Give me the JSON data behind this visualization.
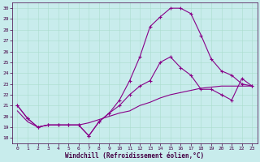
{
  "xlabel": "Windchill (Refroidissement éolien,°C)",
  "background_color": "#c8ecec",
  "line_color": "#880088",
  "xmin": -0.5,
  "xmax": 23.5,
  "ymin": 17.5,
  "ymax": 30.5,
  "yticks": [
    18,
    19,
    20,
    21,
    22,
    23,
    24,
    25,
    26,
    27,
    28,
    29,
    30
  ],
  "xticks": [
    0,
    1,
    2,
    3,
    4,
    5,
    6,
    7,
    8,
    9,
    10,
    11,
    12,
    13,
    14,
    15,
    16,
    17,
    18,
    19,
    20,
    21,
    22,
    23
  ],
  "series1_x": [
    0,
    1,
    2,
    3,
    4,
    5,
    6,
    7,
    8,
    9,
    10,
    11,
    12,
    13,
    14,
    15,
    16,
    17,
    18,
    19,
    20,
    21,
    22,
    23
  ],
  "series1_y": [
    21.0,
    19.8,
    19.0,
    19.2,
    19.2,
    19.2,
    19.2,
    18.2,
    19.5,
    20.3,
    21.5,
    23.3,
    25.5,
    28.3,
    29.2,
    30.0,
    30.0,
    29.5,
    27.5,
    25.3,
    24.2,
    23.8,
    23.0,
    22.8
  ],
  "series2_x": [
    0,
    1,
    2,
    3,
    4,
    5,
    6,
    7,
    8,
    9,
    10,
    11,
    12,
    13,
    14,
    15,
    16,
    17,
    18,
    19,
    20,
    21,
    22,
    23
  ],
  "series2_y": [
    21.0,
    19.8,
    19.0,
    19.2,
    19.2,
    19.2,
    19.2,
    18.2,
    19.5,
    20.3,
    21.0,
    22.0,
    22.8,
    23.3,
    25.0,
    25.5,
    24.5,
    23.8,
    22.5,
    22.5,
    22.0,
    21.5,
    23.5,
    22.8
  ],
  "series3_x": [
    0,
    1,
    2,
    3,
    4,
    5,
    6,
    7,
    8,
    9,
    10,
    11,
    12,
    13,
    14,
    15,
    16,
    17,
    18,
    19,
    20,
    21,
    22,
    23
  ],
  "series3_y": [
    20.5,
    19.5,
    19.0,
    19.2,
    19.2,
    19.2,
    19.2,
    19.4,
    19.7,
    20.0,
    20.3,
    20.5,
    21.0,
    21.3,
    21.7,
    22.0,
    22.2,
    22.4,
    22.6,
    22.7,
    22.8,
    22.8,
    22.8,
    22.8
  ]
}
